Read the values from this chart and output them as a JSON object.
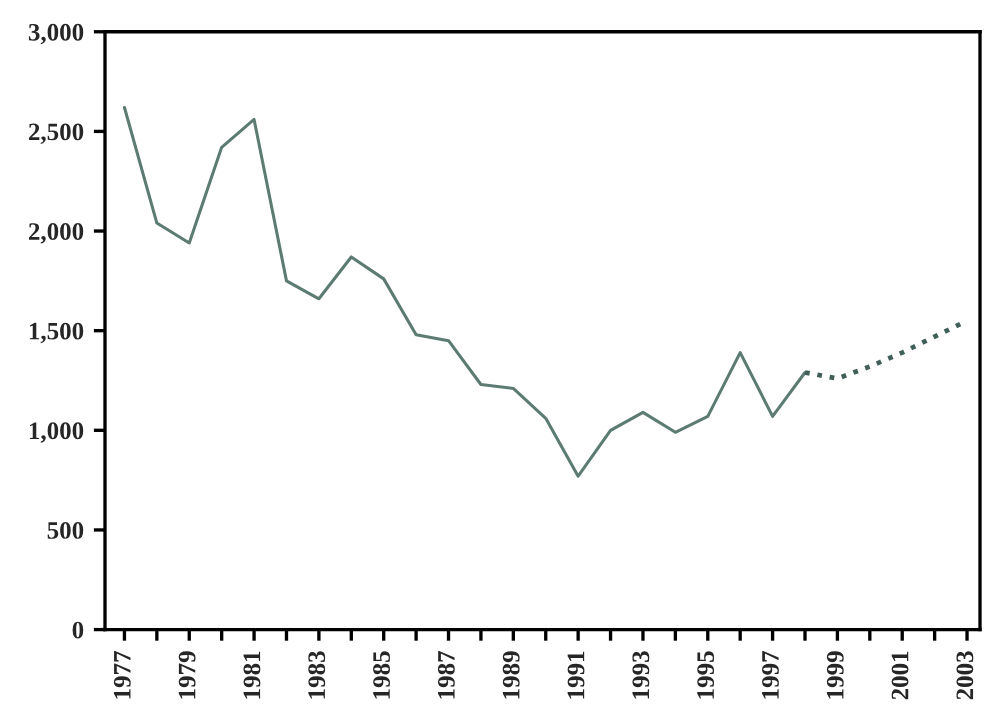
{
  "chart_data": {
    "type": "line",
    "categories": [
      "1977",
      null,
      "1979",
      null,
      "1981",
      null,
      "1983",
      null,
      "1985",
      null,
      "1987",
      null,
      "1989",
      null,
      "1991",
      null,
      "1993",
      null,
      "1995",
      null,
      "1997",
      null,
      "1999",
      null,
      "2001",
      null,
      "2003"
    ],
    "series": [
      {
        "color": "#5b7b73",
        "line_style": "solid",
        "values": [
          2620,
          2040,
          1940,
          2420,
          2560,
          1750,
          1660,
          1870,
          1760,
          1480,
          1450,
          1230,
          1210,
          1060,
          770,
          1000,
          1090,
          990,
          1070,
          1390,
          1070,
          1290,
          null,
          null,
          null,
          null,
          null
        ]
      },
      {
        "color": "#3f5f58",
        "line_style": "dotted",
        "values": [
          null,
          null,
          null,
          null,
          null,
          null,
          null,
          null,
          null,
          null,
          null,
          null,
          null,
          null,
          null,
          null,
          null,
          null,
          null,
          null,
          null,
          1290,
          1260,
          1320,
          1390,
          1470,
          1550
        ]
      }
    ],
    "ylim": [
      0,
      3000
    ],
    "yticks": [
      {
        "value": 0,
        "label": "0"
      },
      {
        "value": 500,
        "label": "500"
      },
      {
        "value": 1000,
        "label": "1,000"
      },
      {
        "value": 1500,
        "label": "1,500"
      },
      {
        "value": 2000,
        "label": "2,000"
      },
      {
        "value": 2500,
        "label": "2,500"
      },
      {
        "value": 3000,
        "label": "3,000"
      }
    ],
    "grid": false,
    "marker": "none"
  }
}
